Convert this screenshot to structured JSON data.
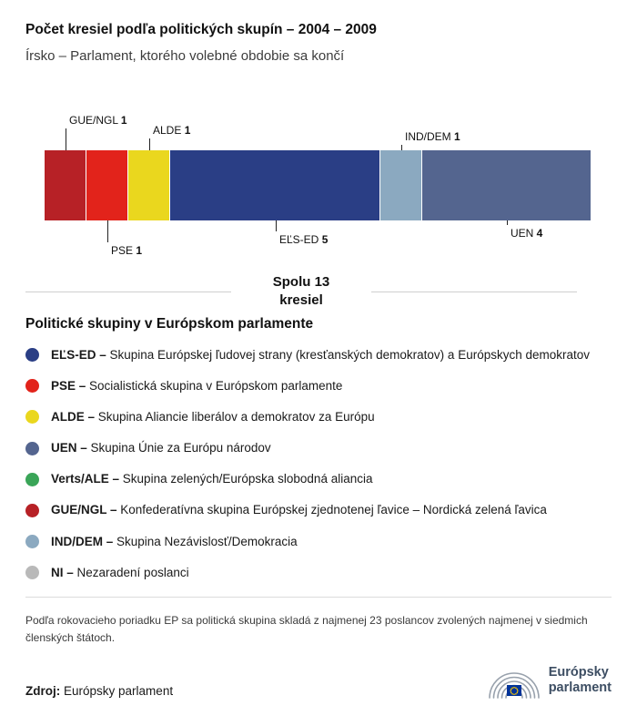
{
  "header": {
    "title": "Počet kresiel podľa politických skupín – 2004 – 2009",
    "subtitle": "Írsko – Parlament, ktorého volebné obdobie sa končí"
  },
  "chart_data": {
    "type": "bar",
    "variant": "horizontal-stacked-seat-bar",
    "total": 13,
    "total_label": {
      "line1": "Spolu 13",
      "line2": "kresiel"
    },
    "segments": [
      {
        "name": "GUE/NGL",
        "seats": 1,
        "color": "#b72126",
        "label_side": "above"
      },
      {
        "name": "PSE",
        "seats": 1,
        "color": "#e2231b",
        "label_side": "below"
      },
      {
        "name": "ALDE",
        "seats": 1,
        "color": "#ead71e",
        "label_side": "above"
      },
      {
        "name": "EĽS-ED",
        "seats": 5,
        "color": "#2a3e85",
        "label_side": "below"
      },
      {
        "name": "IND/DEM",
        "seats": 1,
        "color": "#8ba9c0",
        "label_side": "above"
      },
      {
        "name": "UEN",
        "seats": 4,
        "color": "#54658f",
        "label_side": "below"
      }
    ]
  },
  "legend": {
    "title": "Politické skupiny v Európskom parlamente",
    "items": [
      {
        "name": "EĽS-ED",
        "description": "Skupina Európskej ľudovej strany (kresťanských demokratov) a Európskych demokratov",
        "color": "#2a3e85"
      },
      {
        "name": "PSE",
        "description": "Socialistická skupina v Európskom parlamente",
        "color": "#e2231b"
      },
      {
        "name": "ALDE",
        "description": "Skupina Aliancie liberálov a demokratov za Európu",
        "color": "#ead71e"
      },
      {
        "name": "UEN",
        "description": "Skupina Únie za Európu národov",
        "color": "#54658f"
      },
      {
        "name": "Verts/ALE",
        "description": "Skupina zelených/Európska slobodná aliancia",
        "color": "#3aa558"
      },
      {
        "name": "GUE/NGL",
        "description": "Konfederatívna skupina Európskej zjednotenej ľavice – Nordická zelená ľavica",
        "color": "#b72126"
      },
      {
        "name": "IND/DEM",
        "description": "Skupina Nezávislosť/Demokracia",
        "color": "#8ba9c0"
      },
      {
        "name": "NI",
        "description": "Nezaradení poslanci",
        "color": "#b9b9b9"
      }
    ]
  },
  "footnote": "Podľa rokovacieho poriadku EP sa politická skupina skladá z najmenej 23 poslancov zvolených najmenej v siedmich členských štátoch.",
  "source": {
    "label": "Zdroj:",
    "value": "Európsky parlament"
  },
  "logo": {
    "text_line1": "Európsky",
    "text_line2": "parlament"
  }
}
